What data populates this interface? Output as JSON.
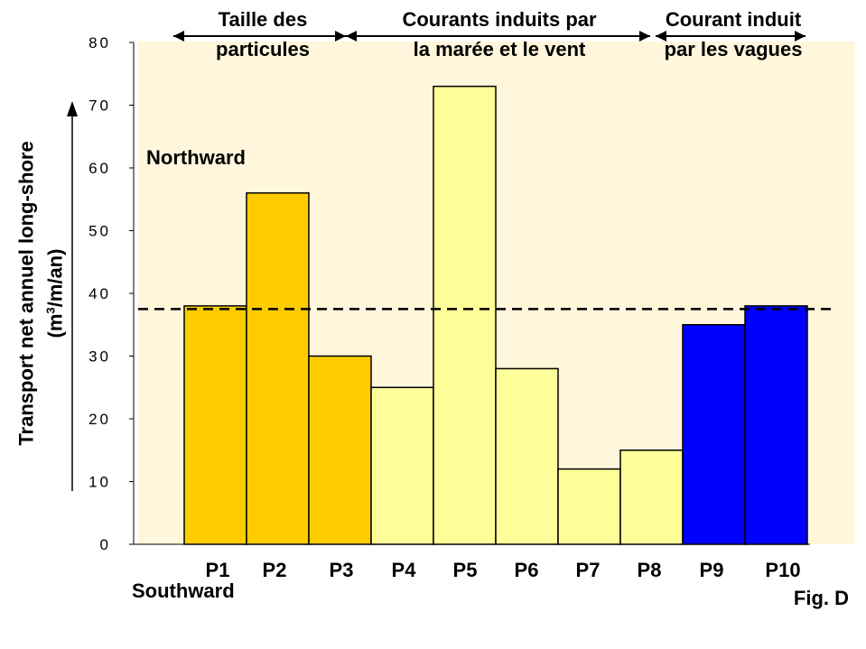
{
  "chart_data": {
    "type": "bar",
    "categories": [
      "P1",
      "P2",
      "P3",
      "P4",
      "P5",
      "P6",
      "P7",
      "P8",
      "P9",
      "P10"
    ],
    "values": [
      38,
      56,
      30,
      25,
      73,
      28,
      12,
      15,
      35,
      38
    ],
    "bar_colors": [
      "#FFCC00",
      "#FFCC00",
      "#FFCC00",
      "#FFFF99",
      "#FFFF99",
      "#FFFF99",
      "#FFFF99",
      "#FFFF99",
      "#0000FF",
      "#0000FF"
    ],
    "plot_background": "#FFF6DC",
    "ylim": [
      0,
      80
    ],
    "yticks": [
      "0",
      "10",
      "20",
      "30",
      "40",
      "50",
      "60",
      "70",
      "80"
    ],
    "ylabel_line1": "Transport net annuel long-shore",
    "ylabel_line2_pre": "(m",
    "ylabel_line2_sup": "3",
    "ylabel_line2_post": "/m/an)",
    "reference_line": 37.5,
    "groups": [
      {
        "line1": "Taille des",
        "line2": "particules",
        "from": 0,
        "to": 3
      },
      {
        "line1": "Courants induits par",
        "line2": "la marée et le vent",
        "from": 3,
        "to": 8
      },
      {
        "line1": "Courant induit",
        "line2": "par les vagues",
        "from": 8,
        "to": 10
      }
    ],
    "annotations": {
      "north": "Northward",
      "south": "Southward",
      "fig": "Fig. D"
    },
    "grid": false
  }
}
